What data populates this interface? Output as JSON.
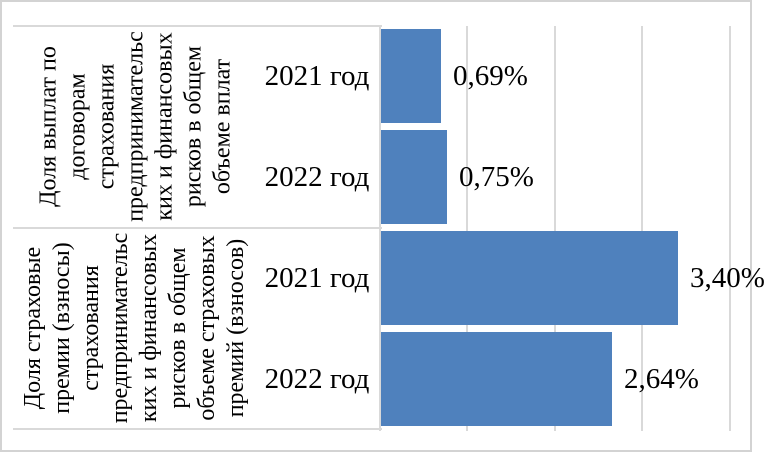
{
  "chart_data": {
    "type": "bar",
    "orientation": "horizontal",
    "title": "",
    "legend": "none",
    "bar_color": "#4F81BD",
    "gridline_color": "#D9D9D9",
    "x_axis": {
      "min": 0,
      "max": 4,
      "gridline_step_pct": 1,
      "gridlines_pct": [
        0,
        1,
        2,
        3,
        4
      ],
      "tick_labels_visible": false
    },
    "groups": [
      {
        "label_lines": [
          "Доля выплат по",
          "договорам",
          "страхования",
          "предпринимательс",
          "ких и финансовых",
          "рисков в общем",
          "объеме вплат"
        ],
        "bars": [
          {
            "category": "2021 год",
            "value": 0.69,
            "value_label": "0,69%"
          },
          {
            "category": "2022 год",
            "value": 0.75,
            "value_label": "0,75%"
          }
        ]
      },
      {
        "label_lines": [
          "Доля страховые",
          "премии (взносы)",
          "страхования",
          "предпринимательс",
          "ких и финансовых",
          "рисков в общем",
          "объеме страховых",
          "премий (взносов)"
        ],
        "bars": [
          {
            "category": "2021 год",
            "value": 3.4,
            "value_label": "3,40%"
          },
          {
            "category": "2022 год",
            "value": 2.64,
            "value_label": "2,64%"
          }
        ]
      }
    ]
  }
}
